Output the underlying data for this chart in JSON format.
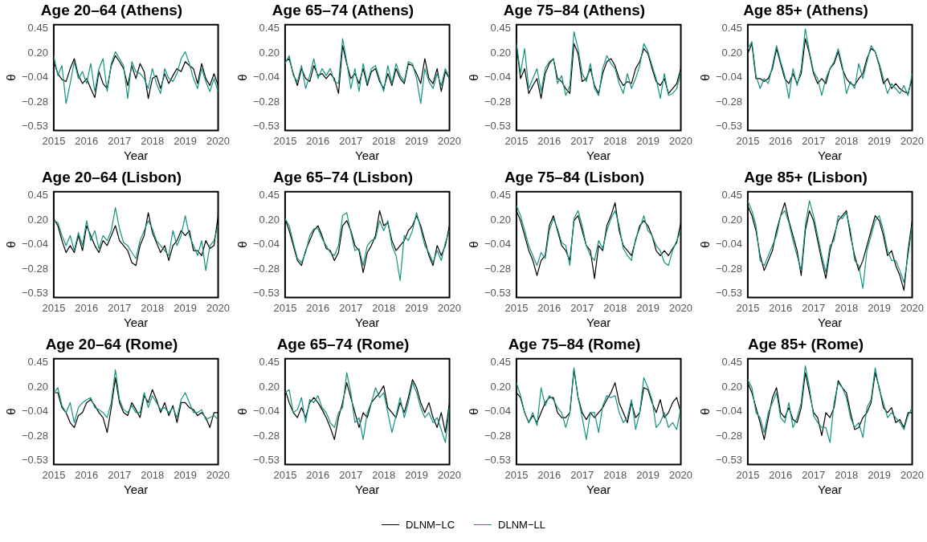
{
  "chart_data": [
    {
      "type": "line",
      "title": "Age 20–64 (Athens)",
      "xlabel": "Year",
      "ylabel": "θ",
      "legend": "bottom",
      "marker": "none",
      "xlim": [
        2015,
        2020
      ],
      "xticks": [
        2015,
        2016,
        2017,
        2018,
        2019,
        2020
      ],
      "ylim": [
        -0.57,
        0.49
      ],
      "yticks": [
        {
          "value": -0.53,
          "label": "−0.53"
        },
        {
          "value": -0.285,
          "label": "−0.28"
        },
        {
          "value": -0.04,
          "label": "−0.04"
        },
        {
          "value": 0.205,
          "label": "0.20"
        },
        {
          "value": 0.45,
          "label": "0.45"
        }
      ],
      "x": [
        2015,
        2015.125,
        2015.25,
        2015.375,
        2015.5,
        2015.625,
        2015.75,
        2015.875,
        2016,
        2016.125,
        2016.25,
        2016.375,
        2016.5,
        2016.625,
        2016.75,
        2016.875,
        2017,
        2017.125,
        2017.25,
        2017.375,
        2017.5,
        2017.625,
        2017.75,
        2017.875,
        2018,
        2018.125,
        2018.25,
        2018.375,
        2018.5,
        2018.625,
        2018.75,
        2018.875,
        2019,
        2019.125,
        2019.25,
        2019.375,
        2019.5,
        2019.625,
        2019.75,
        2019.875,
        2020
      ],
      "series": [
        {
          "name": "DLNM−LC",
          "color": "#000000",
          "values": [
            0.12,
            0.0,
            -0.06,
            -0.08,
            0.05,
            0.15,
            -0.02,
            -0.1,
            -0.05,
            -0.15,
            -0.24,
            0.02,
            -0.1,
            -0.15,
            0.08,
            0.18,
            0.12,
            0.05,
            -0.12,
            0.08,
            -0.05,
            0.1,
            0.02,
            -0.25,
            -0.05,
            -0.02,
            -0.15,
            0.0,
            -0.1,
            -0.02,
            0.05,
            0.02,
            0.12,
            0.08,
            0.05,
            -0.1,
            0.1,
            -0.05,
            -0.12,
            0.0,
            -0.12
          ]
        },
        {
          "name": "DLNM−LL",
          "color": "#13937f",
          "values": [
            0.18,
            -0.02,
            0.08,
            -0.3,
            -0.1,
            0.12,
            -0.05,
            0.02,
            -0.1,
            0.1,
            -0.18,
            0.05,
            0.15,
            -0.18,
            0.1,
            0.22,
            0.15,
            0.08,
            -0.25,
            0.12,
            0.02,
            0.0,
            -0.05,
            -0.15,
            0.05,
            -0.1,
            -0.2,
            0.05,
            -0.05,
            -0.08,
            0.0,
            0.15,
            0.22,
            0.1,
            -0.05,
            -0.15,
            0.05,
            -0.08,
            -0.18,
            -0.05,
            -0.18
          ]
        }
      ]
    },
    {
      "type": "line",
      "title": "Age 65–74 (Athens)",
      "xlabel": "Year",
      "ylabel": "θ",
      "legend": "bottom",
      "marker": "none",
      "xlim": [
        2015,
        2020
      ],
      "xticks": [
        2015,
        2016,
        2017,
        2018,
        2019,
        2020
      ],
      "ylim": [
        -0.57,
        0.49
      ],
      "yticks": [
        {
          "value": -0.53,
          "label": "−0.53"
        },
        {
          "value": -0.285,
          "label": "−0.28"
        },
        {
          "value": -0.04,
          "label": "−0.04"
        },
        {
          "value": 0.205,
          "label": "0.20"
        },
        {
          "value": 0.45,
          "label": "0.45"
        }
      ],
      "x": [
        2015,
        2015.125,
        2015.25,
        2015.375,
        2015.5,
        2015.625,
        2015.75,
        2015.875,
        2016,
        2016.125,
        2016.25,
        2016.375,
        2016.5,
        2016.625,
        2016.75,
        2016.875,
        2017,
        2017.125,
        2017.25,
        2017.375,
        2017.5,
        2017.625,
        2017.75,
        2017.875,
        2018,
        2018.125,
        2018.25,
        2018.375,
        2018.5,
        2018.625,
        2018.75,
        2018.875,
        2019,
        2019.125,
        2019.25,
        2019.375,
        2019.5,
        2019.625,
        2019.75,
        2019.875,
        2020
      ],
      "series": [
        {
          "name": "DLNM−LC",
          "color": "#000000",
          "values": [
            0.12,
            0.15,
            0.0,
            -0.12,
            0.05,
            -0.05,
            -0.08,
            0.08,
            -0.02,
            0.0,
            -0.05,
            0.0,
            -0.05,
            -0.2,
            0.28,
            0.1,
            -0.05,
            0.0,
            -0.1,
            0.05,
            -0.12,
            0.02,
            0.05,
            -0.08,
            -0.15,
            0.0,
            -0.12,
            0.05,
            -0.05,
            -0.1,
            0.1,
            0.08,
            0.0,
            -0.1,
            0.15,
            -0.05,
            -0.1,
            0.05,
            -0.18,
            0.02,
            -0.05
          ]
        },
        {
          "name": "DLNM−LL",
          "color": "#13937f",
          "values": [
            0.1,
            0.18,
            -0.02,
            -0.08,
            0.08,
            -0.15,
            -0.02,
            0.15,
            -0.05,
            0.05,
            -0.02,
            0.05,
            -0.08,
            -0.1,
            0.35,
            0.12,
            -0.15,
            0.05,
            -0.18,
            0.1,
            -0.1,
            0.05,
            0.08,
            -0.05,
            -0.18,
            0.08,
            -0.1,
            0.1,
            -0.02,
            -0.08,
            0.12,
            0.1,
            -0.05,
            -0.3,
            0.05,
            -0.08,
            -0.15,
            0.0,
            -0.12,
            0.05,
            -0.05
          ]
        }
      ]
    },
    {
      "type": "line",
      "title": "Age 75–84 (Athens)",
      "xlabel": "Year",
      "ylabel": "θ",
      "legend": "bottom",
      "marker": "none",
      "xlim": [
        2015,
        2020
      ],
      "xticks": [
        2015,
        2016,
        2017,
        2018,
        2019,
        2020
      ],
      "ylim": [
        -0.57,
        0.49
      ],
      "yticks": [
        {
          "value": -0.53,
          "label": "−0.53"
        },
        {
          "value": -0.285,
          "label": "−0.28"
        },
        {
          "value": -0.04,
          "label": "−0.04"
        },
        {
          "value": 0.205,
          "label": "0.20"
        },
        {
          "value": 0.45,
          "label": "0.45"
        }
      ],
      "x": [
        2015,
        2015.125,
        2015.25,
        2015.375,
        2015.5,
        2015.625,
        2015.75,
        2015.875,
        2016,
        2016.125,
        2016.25,
        2016.375,
        2016.5,
        2016.625,
        2016.75,
        2016.875,
        2017,
        2017.125,
        2017.25,
        2017.375,
        2017.5,
        2017.625,
        2017.75,
        2017.875,
        2018,
        2018.125,
        2018.25,
        2018.375,
        2018.5,
        2018.625,
        2018.75,
        2018.875,
        2019,
        2019.125,
        2019.25,
        2019.375,
        2019.5,
        2019.625,
        2019.75,
        2019.875,
        2020
      ],
      "series": [
        {
          "name": "DLNM−LC",
          "color": "#000000",
          "values": [
            0.3,
            -0.05,
            0.05,
            -0.2,
            -0.12,
            -0.05,
            -0.25,
            0.0,
            0.1,
            0.15,
            -0.05,
            -0.08,
            -0.15,
            -0.2,
            0.3,
            0.2,
            -0.08,
            -0.05,
            0.05,
            -0.12,
            -0.2,
            0.0,
            0.12,
            0.15,
            0.08,
            -0.05,
            -0.12,
            -0.08,
            -0.1,
            0.05,
            0.12,
            0.25,
            0.2,
            0.05,
            -0.08,
            -0.12,
            -0.05,
            -0.2,
            -0.15,
            -0.1,
            0.05
          ]
        },
        {
          "name": "DLNM−LL",
          "color": "#13937f",
          "values": [
            0.3,
            0.0,
            0.25,
            -0.15,
            -0.05,
            0.05,
            -0.18,
            0.05,
            0.12,
            0.15,
            -0.1,
            -0.02,
            -0.22,
            -0.12,
            0.42,
            0.25,
            0.0,
            -0.08,
            0.1,
            -0.15,
            -0.22,
            0.05,
            0.18,
            0.1,
            0.05,
            -0.1,
            -0.2,
            0.0,
            -0.15,
            -0.05,
            0.08,
            0.3,
            0.22,
            0.08,
            -0.05,
            -0.25,
            0.0,
            -0.22,
            -0.2,
            -0.15,
            0.02
          ]
        }
      ]
    },
    {
      "type": "line",
      "title": "Age 85+ (Athens)",
      "xlabel": "Year",
      "ylabel": "θ",
      "legend": "bottom",
      "marker": "none",
      "xlim": [
        2015,
        2020
      ],
      "xticks": [
        2015,
        2016,
        2017,
        2018,
        2019,
        2020
      ],
      "ylim": [
        -0.57,
        0.49
      ],
      "yticks": [
        {
          "value": -0.53,
          "label": "−0.53"
        },
        {
          "value": -0.285,
          "label": "−0.28"
        },
        {
          "value": -0.04,
          "label": "−0.04"
        },
        {
          "value": 0.205,
          "label": "0.20"
        },
        {
          "value": 0.45,
          "label": "0.45"
        }
      ],
      "x": [
        2015,
        2015.125,
        2015.25,
        2015.375,
        2015.5,
        2015.625,
        2015.75,
        2015.875,
        2016,
        2016.125,
        2016.25,
        2016.375,
        2016.5,
        2016.625,
        2016.75,
        2016.875,
        2017,
        2017.125,
        2017.25,
        2017.375,
        2017.5,
        2017.625,
        2017.75,
        2017.875,
        2018,
        2018.125,
        2018.25,
        2018.375,
        2018.5,
        2018.625,
        2018.75,
        2018.875,
        2019,
        2019.125,
        2019.25,
        2019.375,
        2019.5,
        2019.625,
        2019.75,
        2019.875,
        2020
      ],
      "series": [
        {
          "name": "DLNM−LC",
          "color": "#000000",
          "values": [
            0.2,
            0.3,
            -0.05,
            -0.05,
            -0.08,
            -0.05,
            0.05,
            0.25,
            0.1,
            -0.05,
            -0.1,
            0.0,
            -0.1,
            0.0,
            0.35,
            0.2,
            0.0,
            -0.1,
            -0.05,
            -0.1,
            0.05,
            0.1,
            0.22,
            0.05,
            -0.05,
            -0.1,
            -0.12,
            -0.05,
            0.0,
            0.15,
            0.25,
            0.22,
            0.08,
            -0.1,
            -0.05,
            -0.15,
            -0.1,
            -0.15,
            -0.18,
            -0.2,
            -0.05
          ]
        },
        {
          "name": "DLNM−LL",
          "color": "#13937f",
          "values": [
            0.25,
            0.32,
            -0.02,
            -0.15,
            -0.05,
            -0.1,
            0.08,
            0.28,
            0.12,
            -0.02,
            -0.25,
            0.05,
            -0.12,
            0.05,
            0.45,
            0.22,
            0.02,
            -0.05,
            -0.22,
            -0.05,
            0.05,
            0.12,
            0.25,
            0.08,
            -0.2,
            -0.08,
            -0.15,
            0.1,
            -0.05,
            0.12,
            0.28,
            0.22,
            0.1,
            -0.05,
            -0.2,
            -0.1,
            -0.15,
            -0.2,
            -0.12,
            -0.22,
            0.0
          ]
        }
      ]
    },
    {
      "type": "line",
      "title": "Age 20–64 (Lisbon)",
      "xlabel": "Year",
      "ylabel": "θ",
      "legend": "bottom",
      "marker": "none",
      "xlim": [
        2015,
        2020
      ],
      "xticks": [
        2015,
        2016,
        2017,
        2018,
        2019,
        2020
      ],
      "ylim": [
        -0.57,
        0.49
      ],
      "yticks": [
        {
          "value": -0.53,
          "label": "−0.53"
        },
        {
          "value": -0.285,
          "label": "−0.28"
        },
        {
          "value": -0.04,
          "label": "−0.04"
        },
        {
          "value": 0.205,
          "label": "0.20"
        },
        {
          "value": 0.45,
          "label": "0.45"
        }
      ],
      "x": [
        2015,
        2015.125,
        2015.25,
        2015.375,
        2015.5,
        2015.625,
        2015.75,
        2015.875,
        2016,
        2016.125,
        2016.25,
        2016.375,
        2016.5,
        2016.625,
        2016.75,
        2016.875,
        2017,
        2017.125,
        2017.25,
        2017.375,
        2017.5,
        2017.625,
        2017.75,
        2017.875,
        2018,
        2018.125,
        2018.25,
        2018.375,
        2018.5,
        2018.625,
        2018.75,
        2018.875,
        2019,
        2019.125,
        2019.25,
        2019.375,
        2019.5,
        2019.625,
        2019.75,
        2019.875,
        2020
      ],
      "series": [
        {
          "name": "DLNM−LC",
          "color": "#000000",
          "values": [
            0.22,
            0.15,
            0.0,
            -0.12,
            -0.05,
            -0.12,
            0.05,
            -0.1,
            0.15,
            0.05,
            -0.05,
            -0.12,
            0.0,
            -0.05,
            0.05,
            0.15,
            0.0,
            -0.05,
            -0.1,
            -0.22,
            -0.25,
            -0.05,
            0.05,
            0.28,
            0.08,
            -0.02,
            -0.12,
            -0.05,
            -0.2,
            -0.05,
            0.0,
            0.1,
            0.05,
            0.1,
            -0.1,
            -0.1,
            -0.15,
            0.0,
            -0.08,
            -0.05,
            0.25
          ]
        },
        {
          "name": "DLNM−LL",
          "color": "#13937f",
          "values": [
            0.2,
            0.18,
            0.05,
            -0.05,
            0.05,
            -0.1,
            0.08,
            -0.05,
            0.2,
            0.0,
            0.1,
            -0.08,
            0.05,
            0.0,
            0.1,
            0.33,
            0.12,
            -0.02,
            -0.05,
            -0.12,
            -0.18,
            0.0,
            0.1,
            0.2,
            0.12,
            0.0,
            -0.05,
            -0.1,
            -0.15,
            0.1,
            -0.05,
            0.05,
            0.25,
            0.05,
            -0.05,
            -0.15,
            0.0,
            -0.3,
            -0.05,
            0.0,
            0.15
          ]
        }
      ]
    },
    {
      "type": "line",
      "title": "Age 65–74 (Lisbon)",
      "xlabel": "Year",
      "ylabel": "θ",
      "legend": "bottom",
      "marker": "none",
      "xlim": [
        2015,
        2020
      ],
      "xticks": [
        2015,
        2016,
        2017,
        2018,
        2019,
        2020
      ],
      "ylim": [
        -0.57,
        0.49
      ],
      "yticks": [
        {
          "value": -0.53,
          "label": "−0.53"
        },
        {
          "value": -0.285,
          "label": "−0.28"
        },
        {
          "value": -0.04,
          "label": "−0.04"
        },
        {
          "value": 0.205,
          "label": "0.20"
        },
        {
          "value": 0.45,
          "label": "0.45"
        }
      ],
      "x": [
        2015,
        2015.125,
        2015.25,
        2015.375,
        2015.5,
        2015.625,
        2015.75,
        2015.875,
        2016,
        2016.125,
        2016.25,
        2016.375,
        2016.5,
        2016.625,
        2016.75,
        2016.875,
        2017,
        2017.125,
        2017.25,
        2017.375,
        2017.5,
        2017.625,
        2017.75,
        2017.875,
        2018,
        2018.125,
        2018.25,
        2018.375,
        2018.5,
        2018.625,
        2018.75,
        2018.875,
        2019,
        2019.125,
        2019.25,
        2019.375,
        2019.5,
        2019.625,
        2019.75,
        2019.875,
        2020
      ],
      "series": [
        {
          "name": "DLNM−LC",
          "color": "#000000",
          "values": [
            0.22,
            0.1,
            -0.05,
            -0.2,
            -0.25,
            -0.1,
            0.0,
            0.1,
            0.15,
            0.05,
            -0.08,
            -0.1,
            -0.2,
            -0.12,
            0.15,
            0.2,
            0.1,
            -0.05,
            -0.1,
            -0.32,
            -0.12,
            -0.05,
            0.05,
            0.3,
            0.15,
            0.18,
            0.0,
            -0.1,
            -0.05,
            0.0,
            0.1,
            0.15,
            0.25,
            0.15,
            0.0,
            -0.15,
            -0.25,
            -0.05,
            -0.15,
            -0.05,
            0.15
          ]
        },
        {
          "name": "DLNM−LL",
          "color": "#13937f",
          "values": [
            0.22,
            0.15,
            -0.02,
            -0.18,
            -0.22,
            -0.12,
            0.05,
            0.12,
            0.12,
            0.02,
            -0.05,
            -0.12,
            -0.15,
            -0.05,
            0.25,
            0.28,
            0.08,
            -0.1,
            -0.08,
            -0.25,
            -0.05,
            0.0,
            0.02,
            0.2,
            0.1,
            0.2,
            -0.05,
            -0.15,
            -0.4,
            0.05,
            0.0,
            0.1,
            0.28,
            0.12,
            -0.05,
            -0.12,
            -0.22,
            -0.1,
            -0.2,
            -0.02,
            0.1
          ]
        }
      ]
    },
    {
      "type": "line",
      "title": "Age 75–84 (Lisbon)",
      "xlabel": "Year",
      "ylabel": "θ",
      "legend": "bottom",
      "marker": "none",
      "xlim": [
        2015,
        2020
      ],
      "xticks": [
        2015,
        2016,
        2017,
        2018,
        2019,
        2020
      ],
      "ylim": [
        -0.57,
        0.49
      ],
      "yticks": [
        {
          "value": -0.53,
          "label": "−0.53"
        },
        {
          "value": -0.285,
          "label": "−0.28"
        },
        {
          "value": -0.04,
          "label": "−0.04"
        },
        {
          "value": 0.205,
          "label": "0.20"
        },
        {
          "value": 0.45,
          "label": "0.45"
        }
      ],
      "x": [
        2015,
        2015.125,
        2015.25,
        2015.375,
        2015.5,
        2015.625,
        2015.75,
        2015.875,
        2016,
        2016.125,
        2016.25,
        2016.375,
        2016.5,
        2016.625,
        2016.75,
        2016.875,
        2017,
        2017.125,
        2017.25,
        2017.375,
        2017.5,
        2017.625,
        2017.75,
        2017.875,
        2018,
        2018.125,
        2018.25,
        2018.375,
        2018.5,
        2018.625,
        2018.75,
        2018.875,
        2019,
        2019.125,
        2019.25,
        2019.375,
        2019.5,
        2019.625,
        2019.75,
        2019.875,
        2020
      ],
      "series": [
        {
          "name": "DLNM−LC",
          "color": "#000000",
          "values": [
            0.3,
            0.2,
            0.05,
            -0.1,
            -0.2,
            -0.35,
            -0.2,
            -0.15,
            0.15,
            0.25,
            0.1,
            -0.05,
            -0.1,
            -0.2,
            0.2,
            0.25,
            0.1,
            -0.05,
            -0.1,
            -0.38,
            -0.05,
            -0.1,
            0.15,
            0.25,
            0.38,
            0.1,
            -0.05,
            -0.1,
            -0.15,
            0.0,
            0.15,
            0.2,
            0.15,
            0.05,
            -0.1,
            -0.15,
            -0.1,
            -0.15,
            -0.08,
            -0.02,
            0.18
          ]
        },
        {
          "name": "DLNM−LL",
          "color": "#13937f",
          "values": [
            0.35,
            0.25,
            0.1,
            -0.05,
            -0.15,
            -0.25,
            -0.12,
            -0.18,
            0.1,
            0.22,
            0.12,
            -0.02,
            -0.05,
            -0.25,
            0.22,
            0.3,
            0.15,
            -0.05,
            -0.15,
            -0.2,
            0.0,
            -0.08,
            0.1,
            0.22,
            0.3,
            0.15,
            -0.08,
            -0.15,
            -0.2,
            0.02,
            0.12,
            0.25,
            0.1,
            0.05,
            -0.05,
            -0.1,
            -0.22,
            -0.25,
            -0.1,
            0.0,
            0.1
          ]
        }
      ]
    },
    {
      "type": "line",
      "title": "Age 85+ (Lisbon)",
      "xlabel": "Year",
      "ylabel": "θ",
      "legend": "bottom",
      "marker": "none",
      "xlim": [
        2015,
        2020
      ],
      "xticks": [
        2015,
        2016,
        2017,
        2018,
        2019,
        2020
      ],
      "ylim": [
        -0.57,
        0.49
      ],
      "yticks": [
        {
          "value": -0.53,
          "label": "−0.53"
        },
        {
          "value": -0.285,
          "label": "−0.28"
        },
        {
          "value": -0.04,
          "label": "−0.04"
        },
        {
          "value": 0.205,
          "label": "0.20"
        },
        {
          "value": 0.45,
          "label": "0.45"
        }
      ],
      "x": [
        2015,
        2015.125,
        2015.25,
        2015.375,
        2015.5,
        2015.625,
        2015.75,
        2015.875,
        2016,
        2016.125,
        2016.25,
        2016.375,
        2016.5,
        2016.625,
        2016.75,
        2016.875,
        2017,
        2017.125,
        2017.25,
        2017.375,
        2017.5,
        2017.625,
        2017.75,
        2017.875,
        2018,
        2018.125,
        2018.25,
        2018.375,
        2018.5,
        2018.625,
        2018.75,
        2018.875,
        2019,
        2019.125,
        2019.25,
        2019.375,
        2019.5,
        2019.625,
        2019.75,
        2019.875,
        2020
      ],
      "series": [
        {
          "name": "DLNM−LC",
          "color": "#000000",
          "values": [
            0.35,
            0.25,
            0.1,
            -0.15,
            -0.3,
            -0.2,
            -0.1,
            0.1,
            0.25,
            0.38,
            0.2,
            0.05,
            -0.1,
            -0.35,
            0.1,
            0.3,
            0.2,
            0.0,
            -0.2,
            -0.38,
            -0.1,
            0.05,
            0.2,
            0.25,
            0.3,
            0.05,
            -0.15,
            -0.3,
            -0.2,
            -0.05,
            0.1,
            0.25,
            0.2,
            0.05,
            -0.15,
            -0.1,
            -0.25,
            -0.35,
            -0.5,
            -0.1,
            0.2
          ]
        },
        {
          "name": "DLNM−LL",
          "color": "#13937f",
          "values": [
            0.4,
            0.3,
            0.15,
            -0.2,
            -0.25,
            -0.15,
            -0.05,
            0.05,
            0.25,
            0.3,
            0.18,
            0.0,
            -0.15,
            -0.3,
            0.15,
            0.4,
            0.25,
            0.05,
            -0.15,
            -0.32,
            -0.05,
            0.0,
            0.25,
            0.22,
            0.28,
            0.1,
            -0.2,
            -0.25,
            -0.48,
            -0.1,
            0.05,
            0.2,
            0.25,
            0.1,
            -0.1,
            -0.2,
            -0.2,
            -0.3,
            -0.42,
            -0.15,
            0.15
          ]
        }
      ]
    },
    {
      "type": "line",
      "title": "Age 20–64 (Rome)",
      "xlabel": "Year",
      "ylabel": "θ",
      "legend": "bottom",
      "marker": "none",
      "xlim": [
        2015,
        2020
      ],
      "xticks": [
        2015,
        2016,
        2017,
        2018,
        2019,
        2020
      ],
      "ylim": [
        -0.57,
        0.49
      ],
      "yticks": [
        {
          "value": -0.53,
          "label": "−0.53"
        },
        {
          "value": -0.285,
          "label": "−0.28"
        },
        {
          "value": -0.04,
          "label": "−0.04"
        },
        {
          "value": 0.205,
          "label": "0.20"
        },
        {
          "value": 0.45,
          "label": "0.45"
        }
      ],
      "x": [
        2015,
        2015.125,
        2015.25,
        2015.375,
        2015.5,
        2015.625,
        2015.75,
        2015.875,
        2016,
        2016.125,
        2016.25,
        2016.375,
        2016.5,
        2016.625,
        2016.75,
        2016.875,
        2017,
        2017.125,
        2017.25,
        2017.375,
        2017.5,
        2017.625,
        2017.75,
        2017.875,
        2018,
        2018.125,
        2018.25,
        2018.375,
        2018.5,
        2018.625,
        2018.75,
        2018.875,
        2019,
        2019.125,
        2019.25,
        2019.375,
        2019.5,
        2019.625,
        2019.75,
        2019.875,
        2020
      ],
      "series": [
        {
          "name": "DLNM−LC",
          "color": "#000000",
          "values": [
            0.15,
            0.15,
            0.0,
            -0.05,
            -0.15,
            -0.2,
            -0.08,
            -0.05,
            0.05,
            0.08,
            0.02,
            -0.05,
            -0.1,
            -0.25,
            0.0,
            0.3,
            0.05,
            -0.05,
            -0.08,
            0.05,
            -0.02,
            -0.1,
            0.12,
            0.05,
            0.18,
            0.08,
            -0.05,
            0.05,
            -0.08,
            0.02,
            -0.15,
            0.05,
            0.05,
            0.0,
            -0.02,
            -0.08,
            -0.05,
            -0.1,
            -0.2,
            -0.05,
            -0.05
          ]
        },
        {
          "name": "DLNM−LL",
          "color": "#13937f",
          "values": [
            0.15,
            0.2,
            0.02,
            -0.05,
            0.05,
            -0.15,
            0.0,
            0.05,
            0.08,
            0.1,
            0.0,
            -0.02,
            -0.05,
            -0.1,
            0.05,
            0.38,
            0.08,
            -0.02,
            -0.05,
            0.02,
            -0.05,
            -0.05,
            0.15,
            0.0,
            0.12,
            0.05,
            -0.02,
            0.0,
            -0.05,
            0.0,
            -0.1,
            0.08,
            0.15,
            0.05,
            -0.05,
            -0.05,
            -0.02,
            -0.12,
            -0.1,
            -0.08,
            -0.12
          ]
        }
      ]
    },
    {
      "type": "line",
      "title": "Age 65–74 (Rome)",
      "xlabel": "Year",
      "ylabel": "θ",
      "legend": "bottom",
      "marker": "none",
      "xlim": [
        2015,
        2020
      ],
      "xticks": [
        2015,
        2016,
        2017,
        2018,
        2019,
        2020
      ],
      "ylim": [
        -0.57,
        0.49
      ],
      "yticks": [
        {
          "value": -0.53,
          "label": "−0.53"
        },
        {
          "value": -0.285,
          "label": "−0.28"
        },
        {
          "value": -0.04,
          "label": "−0.04"
        },
        {
          "value": 0.205,
          "label": "0.20"
        },
        {
          "value": 0.45,
          "label": "0.45"
        }
      ],
      "x": [
        2015,
        2015.125,
        2015.25,
        2015.375,
        2015.5,
        2015.625,
        2015.75,
        2015.875,
        2016,
        2016.125,
        2016.25,
        2016.375,
        2016.5,
        2016.625,
        2016.75,
        2016.875,
        2017,
        2017.125,
        2017.25,
        2017.375,
        2017.5,
        2017.625,
        2017.75,
        2017.875,
        2018,
        2018.125,
        2018.25,
        2018.375,
        2018.5,
        2018.625,
        2018.75,
        2018.875,
        2019,
        2019.125,
        2019.25,
        2019.375,
        2019.5,
        2019.625,
        2019.75,
        2019.875,
        2020
      ],
      "series": [
        {
          "name": "DLNM−LC",
          "color": "#000000",
          "values": [
            0.18,
            0.05,
            -0.05,
            -0.1,
            0.0,
            -0.1,
            0.05,
            0.1,
            0.05,
            -0.02,
            -0.1,
            -0.2,
            -0.32,
            -0.1,
            0.05,
            0.25,
            0.1,
            -0.05,
            -0.2,
            -0.05,
            -0.1,
            0.05,
            0.1,
            0.15,
            0.22,
            0.0,
            -0.05,
            -0.1,
            0.05,
            -0.05,
            0.1,
            0.28,
            0.2,
            0.05,
            -0.05,
            0.05,
            -0.1,
            -0.2,
            -0.05,
            -0.25,
            0.05
          ]
        },
        {
          "name": "DLNM−LL",
          "color": "#13937f",
          "values": [
            0.15,
            0.18,
            -0.05,
            -0.02,
            0.1,
            -0.15,
            0.08,
            0.05,
            0.12,
            0.0,
            -0.05,
            -0.15,
            -0.2,
            -0.05,
            0.0,
            0.35,
            0.15,
            -0.15,
            -0.1,
            -0.32,
            -0.05,
            0.05,
            0.2,
            0.1,
            0.15,
            -0.05,
            -0.25,
            -0.08,
            0.1,
            -0.1,
            0.05,
            0.25,
            0.15,
            0.0,
            -0.1,
            -0.05,
            -0.15,
            -0.1,
            -0.22,
            -0.35,
            0.0
          ]
        }
      ]
    },
    {
      "type": "line",
      "title": "Age 75–84 (Rome)",
      "xlabel": "Year",
      "ylabel": "θ",
      "legend": "bottom",
      "marker": "none",
      "xlim": [
        2015,
        2020
      ],
      "xticks": [
        2015,
        2016,
        2017,
        2018,
        2019,
        2020
      ],
      "ylim": [
        -0.57,
        0.49
      ],
      "yticks": [
        {
          "value": -0.53,
          "label": "−0.53"
        },
        {
          "value": -0.285,
          "label": "−0.28"
        },
        {
          "value": -0.04,
          "label": "−0.04"
        },
        {
          "value": 0.205,
          "label": "0.20"
        },
        {
          "value": 0.45,
          "label": "0.45"
        }
      ],
      "x": [
        2015,
        2015.125,
        2015.25,
        2015.375,
        2015.5,
        2015.625,
        2015.75,
        2015.875,
        2016,
        2016.125,
        2016.25,
        2016.375,
        2016.5,
        2016.625,
        2016.75,
        2016.875,
        2017,
        2017.125,
        2017.25,
        2017.375,
        2017.5,
        2017.625,
        2017.75,
        2017.875,
        2018,
        2018.125,
        2018.25,
        2018.375,
        2018.5,
        2018.625,
        2018.75,
        2018.875,
        2019,
        2019.125,
        2019.25,
        2019.375,
        2019.5,
        2019.625,
        2019.75,
        2019.875,
        2020
      ],
      "series": [
        {
          "name": "DLNM−LC",
          "color": "#000000",
          "values": [
            0.15,
            0.1,
            -0.05,
            -0.15,
            -0.08,
            -0.15,
            -0.05,
            0.05,
            0.1,
            0.1,
            -0.05,
            -0.1,
            -0.1,
            -0.05,
            0.38,
            0.1,
            -0.05,
            -0.12,
            -0.05,
            -0.1,
            -0.05,
            0.0,
            0.08,
            0.15,
            0.25,
            0.05,
            -0.05,
            -0.15,
            0.05,
            -0.1,
            -0.05,
            0.2,
            0.18,
            0.05,
            -0.05,
            0.08,
            -0.1,
            -0.05,
            0.05,
            0.1,
            -0.05
          ]
        },
        {
          "name": "DLNM−LL",
          "color": "#13937f",
          "values": [
            0.25,
            0.12,
            -0.05,
            -0.15,
            -0.05,
            -0.18,
            0.2,
            0.02,
            0.12,
            0.08,
            0.0,
            -0.05,
            -0.2,
            -0.05,
            0.4,
            0.1,
            -0.1,
            -0.32,
            -0.05,
            -0.05,
            -0.25,
            0.02,
            0.12,
            0.1,
            0.12,
            -0.05,
            -0.15,
            -0.1,
            0.08,
            -0.22,
            -0.05,
            0.3,
            0.2,
            0.08,
            -0.2,
            -0.15,
            -0.05,
            -0.2,
            -0.15,
            -0.22,
            0.0
          ]
        }
      ]
    },
    {
      "type": "line",
      "title": "Age 85+ (Rome)",
      "xlabel": "Year",
      "ylabel": "θ",
      "legend": "bottom",
      "marker": "none",
      "xlim": [
        2015,
        2020
      ],
      "xticks": [
        2015,
        2016,
        2017,
        2018,
        2019,
        2020
      ],
      "ylim": [
        -0.57,
        0.49
      ],
      "yticks": [
        {
          "value": -0.53,
          "label": "−0.53"
        },
        {
          "value": -0.285,
          "label": "−0.28"
        },
        {
          "value": -0.04,
          "label": "−0.04"
        },
        {
          "value": 0.205,
          "label": "0.20"
        },
        {
          "value": 0.45,
          "label": "0.45"
        }
      ],
      "x": [
        2015,
        2015.125,
        2015.25,
        2015.375,
        2015.5,
        2015.625,
        2015.75,
        2015.875,
        2016,
        2016.125,
        2016.25,
        2016.375,
        2016.5,
        2016.625,
        2016.75,
        2016.875,
        2017,
        2017.125,
        2017.25,
        2017.375,
        2017.5,
        2017.625,
        2017.75,
        2017.875,
        2018,
        2018.125,
        2018.25,
        2018.375,
        2018.5,
        2018.625,
        2018.75,
        2018.875,
        2019,
        2019.125,
        2019.25,
        2019.375,
        2019.5,
        2019.625,
        2019.75,
        2019.875,
        2020
      ],
      "series": [
        {
          "name": "DLNM−LC",
          "color": "#000000",
          "values": [
            0.25,
            0.15,
            0.0,
            -0.15,
            -0.32,
            -0.1,
            0.1,
            0.2,
            -0.05,
            -0.1,
            0.0,
            -0.12,
            -0.15,
            0.0,
            0.35,
            0.15,
            -0.05,
            -0.1,
            -0.28,
            -0.05,
            -0.1,
            0.0,
            0.27,
            0.2,
            0.15,
            -0.05,
            -0.22,
            -0.2,
            -0.1,
            -0.05,
            0.05,
            0.35,
            0.2,
            0.0,
            -0.05,
            0.0,
            -0.15,
            -0.12,
            -0.2,
            -0.05,
            -0.05
          ]
        },
        {
          "name": "DLNM−LL",
          "color": "#13937f",
          "values": [
            0.28,
            0.2,
            -0.05,
            -0.1,
            -0.25,
            -0.05,
            0.05,
            0.15,
            -0.1,
            -0.15,
            0.05,
            -0.2,
            -0.1,
            0.05,
            0.42,
            0.2,
            -0.08,
            -0.15,
            -0.2,
            -0.2,
            -0.35,
            0.05,
            0.25,
            0.2,
            0.1,
            -0.1,
            -0.2,
            -0.15,
            -0.3,
            0.0,
            0.08,
            0.4,
            0.18,
            0.05,
            -0.1,
            -0.05,
            -0.1,
            -0.15,
            -0.22,
            -0.08,
            0.0
          ]
        }
      ]
    }
  ]
}
